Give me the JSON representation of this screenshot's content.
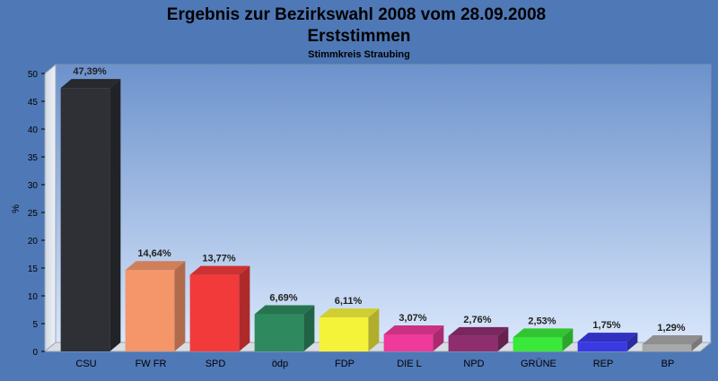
{
  "chart_data": {
    "type": "bar",
    "title": "Ergebnis zur Bezirkswahl 2008 vom 28.09.2008",
    "subtitle": "Erststimmen",
    "subsubtitle": "Stimmkreis Straubing",
    "ylabel": "%",
    "ylim": [
      0,
      50
    ],
    "yticks": [
      0,
      5,
      10,
      15,
      20,
      25,
      30,
      35,
      40,
      45,
      50
    ],
    "categories": [
      "CSU",
      "FW FR",
      "SPD",
      "ödp",
      "FDP",
      "DIE L",
      "NPD",
      "GRÜNE",
      "REP",
      "BP"
    ],
    "values": [
      47.39,
      14.64,
      13.77,
      6.69,
      6.11,
      3.07,
      2.76,
      2.53,
      1.75,
      1.29
    ],
    "value_labels": [
      "47,39%",
      "14,64%",
      "13,77%",
      "6,69%",
      "6,11%",
      "3,07%",
      "2,76%",
      "2,53%",
      "1,75%",
      "1,29%"
    ],
    "colors": [
      "#2e3035",
      "#f4956a",
      "#f23a3a",
      "#2e8a5e",
      "#f5f23a",
      "#ee3a9a",
      "#8e2e6e",
      "#3ae83a",
      "#3a3ae2",
      "#a8a8a8"
    ],
    "grid": false,
    "legend": "none"
  }
}
